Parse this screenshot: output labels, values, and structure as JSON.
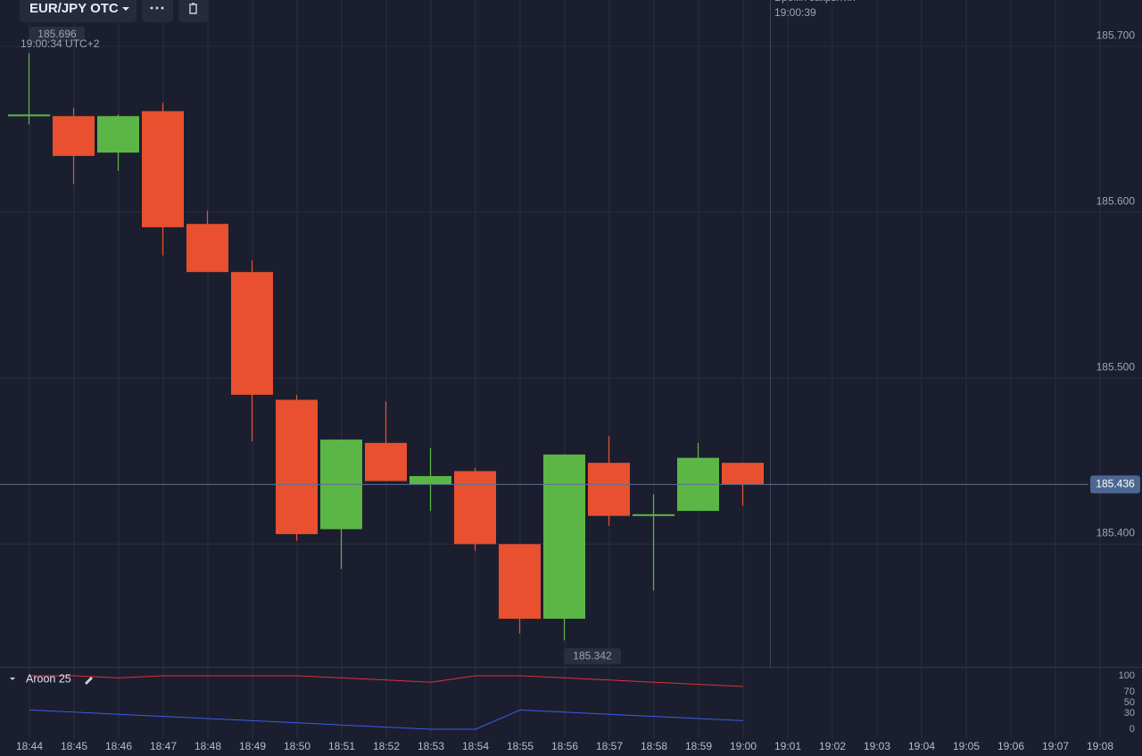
{
  "chart_data": {
    "type": "candlestick",
    "title": "EUR/JPY OTC",
    "categories": [
      "18:44",
      "18:45",
      "18:46",
      "18:47",
      "18:48",
      "18:49",
      "18:50",
      "18:51",
      "18:52",
      "18:53",
      "18:54",
      "18:55",
      "18:56",
      "18:57",
      "18:58",
      "18:59",
      "19:00",
      "19:01",
      "19:02",
      "19:03",
      "19:04",
      "19:05",
      "19:06",
      "19:07",
      "19:08"
    ],
    "open": [
      185.658,
      185.658,
      185.636,
      185.661,
      185.593,
      185.564,
      185.487,
      185.409,
      185.461,
      185.436,
      185.444,
      185.4,
      185.355,
      185.449,
      185.417,
      185.42,
      185.449,
      null,
      null,
      null,
      null,
      null,
      null,
      null,
      null
    ],
    "high": [
      185.696,
      185.663,
      185.659,
      185.666,
      185.601,
      185.571,
      185.49,
      185.463,
      185.486,
      185.458,
      185.446,
      185.4,
      185.454,
      185.465,
      185.43,
      185.461,
      185.449,
      null,
      null,
      null,
      null,
      null,
      null,
      null,
      null
    ],
    "low": [
      185.653,
      185.617,
      185.625,
      185.574,
      185.564,
      185.462,
      185.402,
      185.385,
      185.438,
      185.42,
      185.396,
      185.346,
      185.342,
      185.411,
      185.372,
      185.42,
      185.423,
      null,
      null,
      null,
      null,
      null,
      null,
      null,
      null
    ],
    "close": [
      185.659,
      185.634,
      185.658,
      185.591,
      185.564,
      185.49,
      185.406,
      185.463,
      185.438,
      185.441,
      185.4,
      185.355,
      185.454,
      185.417,
      185.418,
      185.452,
      185.436,
      null,
      null,
      null,
      null,
      null,
      null,
      null,
      null
    ],
    "colors": {
      "up": "#5cb646",
      "down": "#e8502f"
    },
    "ylim": [
      185.326,
      185.728
    ],
    "yticks": [
      {
        "value": 185.4,
        "label": "185.400"
      },
      {
        "value": 185.5,
        "label": "185.500"
      },
      {
        "value": 185.6,
        "label": "185.600"
      },
      {
        "value": 185.7,
        "label": "185.700"
      }
    ],
    "grid": true,
    "annotations": {
      "high": {
        "value": 185.696,
        "label": "185.696"
      },
      "time": "19:00:34 UTC+2",
      "low": {
        "value": 185.342,
        "label": "185.342"
      },
      "current": {
        "value": 185.436,
        "label": "185.436"
      },
      "close_time_title": "Время закрытия",
      "close_time": "19:00:39"
    },
    "indicator": {
      "type": "line",
      "title": "Aroon 25",
      "ylim": [
        0,
        100
      ],
      "yticks": [
        0,
        30,
        50,
        70,
        100
      ],
      "series": [
        {
          "color": "#d9333a",
          "values": [
            100,
            100,
            96,
            100,
            100,
            100,
            100,
            96,
            92,
            88,
            100,
            100,
            96,
            92,
            88,
            84,
            80,
            null,
            null,
            null,
            null,
            null,
            null,
            null,
            null
          ]
        },
        {
          "color": "#3a5ce8",
          "values": [
            36,
            32,
            28,
            24,
            20,
            16,
            12,
            8,
            4,
            0,
            0,
            36,
            32,
            28,
            24,
            20,
            16,
            null,
            null,
            null,
            null,
            null,
            null,
            null,
            null
          ]
        }
      ]
    }
  }
}
